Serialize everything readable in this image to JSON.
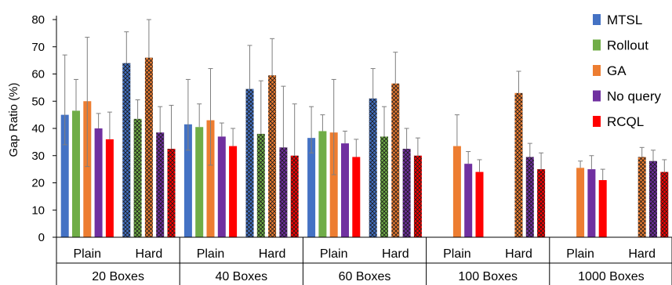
{
  "chart_data": {
    "type": "bar",
    "title": "",
    "xlabel": "",
    "ylabel": "Gap Ratio (%)",
    "ylim": [
      0,
      80
    ],
    "yticks": [
      0,
      10,
      20,
      30,
      40,
      50,
      60,
      70,
      80
    ],
    "grid": false,
    "legend_position": "right",
    "groups": [
      "20 Boxes",
      "40 Boxes",
      "60 Boxes",
      "100 Boxes",
      "1000 Boxes"
    ],
    "categories": [
      {
        "group": "20 Boxes",
        "label": "Plain"
      },
      {
        "group": "20 Boxes",
        "label": "Hard"
      },
      {
        "group": "40 Boxes",
        "label": "Plain"
      },
      {
        "group": "40 Boxes",
        "label": "Hard"
      },
      {
        "group": "60 Boxes",
        "label": "Plain"
      },
      {
        "group": "60 Boxes",
        "label": "Hard"
      },
      {
        "group": "100 Boxes",
        "label": "Plain"
      },
      {
        "group": "100 Boxes",
        "label": "Hard"
      },
      {
        "group": "1000 Boxes",
        "label": "Plain"
      },
      {
        "group": "1000 Boxes",
        "label": "Hard"
      }
    ],
    "hatched_categories": [
      "Hard"
    ],
    "series": [
      {
        "name": "MTSL",
        "color": "#4472C4",
        "values": [
          45,
          64,
          41.5,
          54.5,
          36.5,
          51,
          null,
          null,
          null,
          null
        ],
        "error_upper": [
          67,
          75.5,
          58,
          70.5,
          48,
          62,
          null,
          null,
          null,
          null
        ],
        "error_lower": [
          34,
          64,
          32,
          54.5,
          31,
          51,
          null,
          null,
          null,
          null
        ]
      },
      {
        "name": "Rollout",
        "color": "#70AD47",
        "values": [
          46.5,
          43.5,
          40.5,
          38,
          39,
          37,
          null,
          null,
          null,
          null
        ],
        "error_upper": [
          58,
          50.5,
          49,
          57.5,
          45,
          48,
          null,
          null,
          null,
          null
        ],
        "error_lower": [
          46.5,
          43.5,
          40.5,
          38,
          39,
          37,
          null,
          null,
          null,
          null
        ]
      },
      {
        "name": "GA",
        "color": "#ED7D31",
        "values": [
          50,
          66,
          43,
          59.5,
          38.5,
          56.5,
          33.5,
          53,
          25.5,
          29.5
        ],
        "error_upper": [
          73.5,
          80,
          62,
          73,
          58,
          68,
          45,
          61,
          28,
          33
        ],
        "error_lower": [
          26,
          66,
          26.5,
          59.5,
          23,
          56.5,
          33.5,
          53,
          25.5,
          29.5
        ]
      },
      {
        "name": "No query",
        "color": "#7030A0",
        "values": [
          40,
          38.5,
          37,
          33,
          34.5,
          32.5,
          27,
          29.5,
          25,
          28
        ],
        "error_upper": [
          45.5,
          48,
          42,
          55.5,
          39,
          40,
          31.5,
          34.5,
          30,
          32
        ],
        "error_lower": [
          40,
          38.5,
          37,
          33,
          34.5,
          32.5,
          27,
          29.5,
          25,
          28
        ]
      },
      {
        "name": "RCQL",
        "color": "#FF0000",
        "values": [
          36,
          32.5,
          33.5,
          30,
          29.5,
          30,
          24,
          25,
          21,
          24
        ],
        "error_upper": [
          46,
          48.5,
          40,
          49,
          36,
          36.5,
          28.5,
          31,
          25,
          28.5
        ],
        "error_lower": [
          36,
          32.5,
          33.5,
          30,
          29.5,
          30,
          24,
          25,
          21,
          24
        ]
      }
    ]
  }
}
